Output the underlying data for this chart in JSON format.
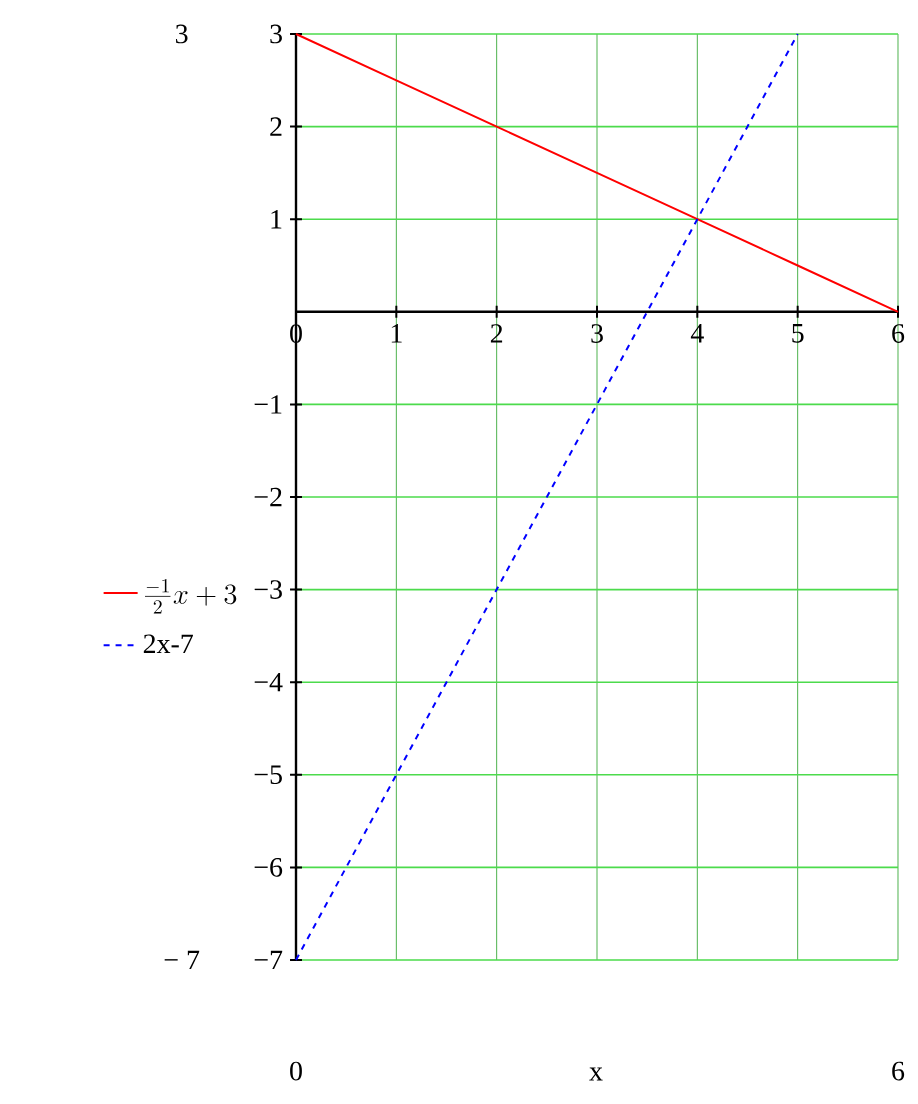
{
  "chart_data": {
    "type": "line",
    "xlabel": "x",
    "x": [
      0,
      1,
      2,
      3,
      4,
      5,
      6
    ],
    "series": [
      {
        "name": "\\frac{-1}{2}x+3",
        "color": "#ff0000",
        "values": [
          3,
          2.5,
          2,
          1.5,
          1,
          0.5,
          0
        ],
        "line_style": "solid"
      },
      {
        "name": "2x-7",
        "color": "#0000ff",
        "values": [
          -7,
          -5,
          -3,
          -1,
          1,
          3,
          null
        ],
        "line_style": "dashed"
      }
    ],
    "xlim": [
      0,
      6
    ],
    "ylim": [
      -7,
      3
    ],
    "xticks": [
      0,
      1,
      2,
      3,
      4,
      5,
      6
    ],
    "yticks": [
      {
        "value": -7,
        "label": "−7"
      },
      {
        "value": -6,
        "label": "−6"
      },
      {
        "value": -5,
        "label": "−5"
      },
      {
        "value": -4,
        "label": "−4"
      },
      {
        "value": -3,
        "label": "−3"
      },
      {
        "value": -2,
        "label": "−2"
      },
      {
        "value": -1,
        "label": "−1"
      },
      1,
      2,
      3
    ],
    "annotations": [
      "3",
      "− 7",
      "0",
      "6"
    ],
    "grid": true,
    "legend": "left",
    "marker": "none"
  }
}
